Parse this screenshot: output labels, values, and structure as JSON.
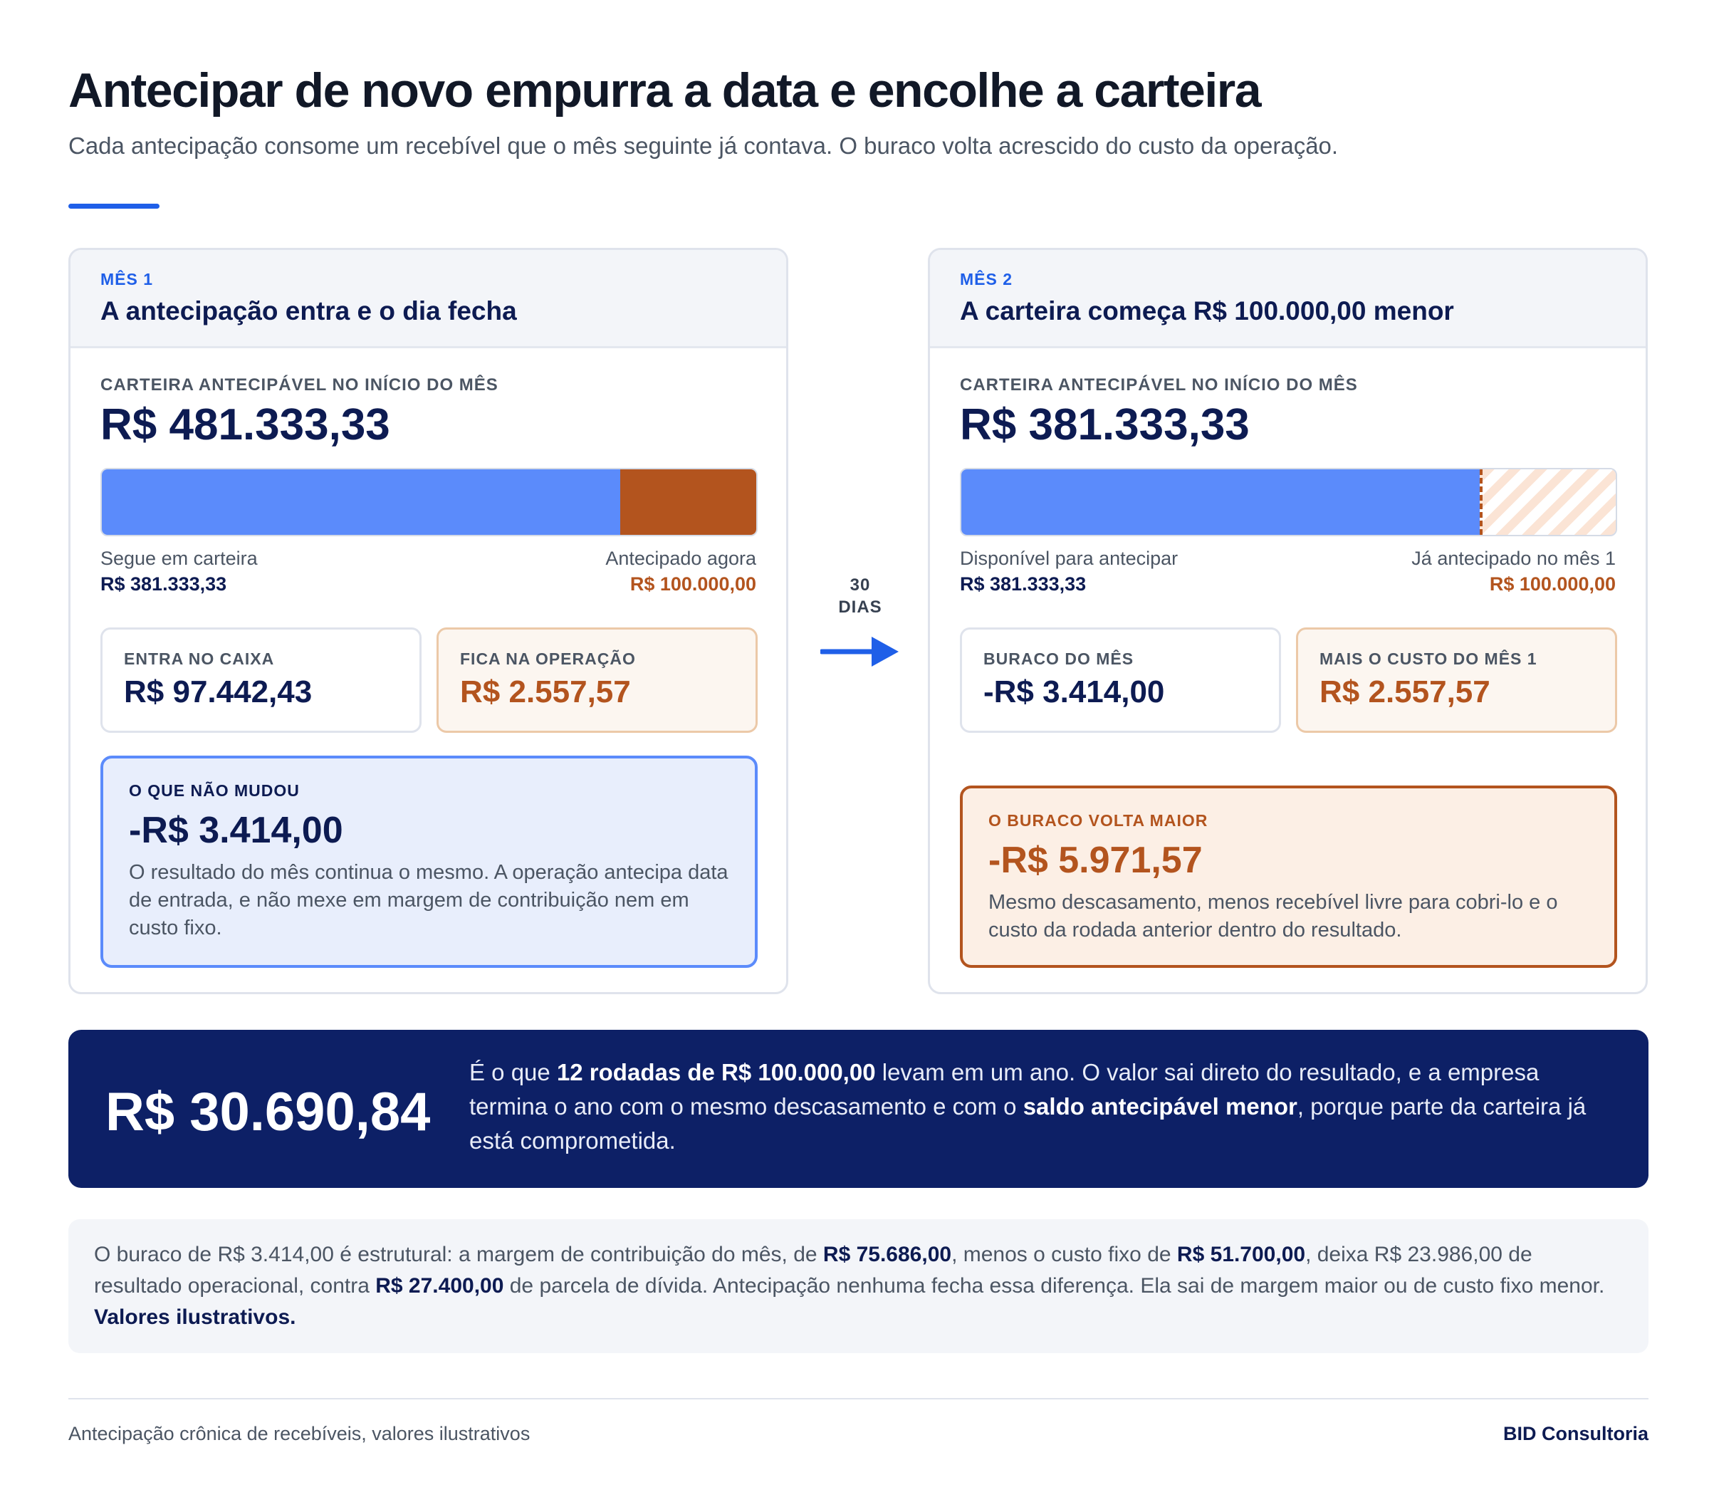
{
  "header": {
    "title": "Antecipar de novo empurra a data e encolhe a carteira",
    "subtitle": "Cada antecipação consome um recebível que o mês seguinte já contava. O buraco volta acrescido do custo da operação."
  },
  "colors": {
    "accent_blue": "#1f5fe8",
    "bar_blue": "#5b8bfb",
    "rust": "#b3541e",
    "navy": "#0d2066"
  },
  "month1": {
    "month_label": "MÊS 1",
    "title": "A antecipação entra e o dia fecha",
    "portfolio_label": "CARTEIRA ANTECIPÁVEL NO INÍCIO DO MÊS",
    "portfolio_value": "R$ 481.333,33",
    "bar": {
      "remaining_fraction": 0.7922,
      "advanced_fraction": 0.2078
    },
    "left_label": "Segue em carteira",
    "left_value": "R$ 381.333,33",
    "right_label": "Antecipado agora",
    "right_value": "R$ 100.000,00",
    "box1_label": "ENTRA NO CAIXA",
    "box1_value": "R$ 97.442,43",
    "box2_label": "FICA NA OPERAÇÃO",
    "box2_value": "R$ 2.557,57",
    "callout_label": "O QUE NÃO MUDOU",
    "callout_value": "-R$ 3.414,00",
    "callout_text": "O resultado do mês continua o mesmo. A operação antecipa data de entrada, e não mexe em margem de contribuição nem em custo fixo."
  },
  "transition": {
    "line1": "30",
    "line2": "DIAS",
    "icon": "arrow-right-icon"
  },
  "month2": {
    "month_label": "MÊS 2",
    "title": "A carteira começa R$ 100.000,00 menor",
    "portfolio_label": "CARTEIRA ANTECIPÁVEL NO INÍCIO DO MÊS",
    "portfolio_value": "R$ 381.333,33",
    "bar": {
      "remaining_fraction": 0.7922,
      "advanced_fraction": 0.2078
    },
    "left_label": "Disponível para antecipar",
    "left_value": "R$ 381.333,33",
    "right_label": "Já antecipado no mês 1",
    "right_value": "R$ 100.000,00",
    "box1_label": "BURACO DO MÊS",
    "box1_value": "-R$ 3.414,00",
    "box2_label": "MAIS O CUSTO DO MÊS 1",
    "box2_value": "R$ 2.557,57",
    "callout_label": "O BURACO VOLTA MAIOR",
    "callout_value": "-R$ 5.971,57",
    "callout_text": "Mesmo descasamento, menos recebível livre para cobri-lo e o custo da rodada anterior dentro do resultado."
  },
  "banner": {
    "value": "R$ 30.690,84",
    "text_1": "É o que ",
    "text_bold_1": "12 rodadas de R$ 100.000,00",
    "text_2": " levam em um ano. O valor sai direto do resultado, e a empresa termina o ano com o mesmo descasamento e com o ",
    "text_bold_2": "saldo antecipável menor",
    "text_3": ", porque parte da carteira já está comprometida."
  },
  "note": {
    "t1": "O buraco de R$ 3.414,00 é estrutural: a margem de contribuição do mês, de ",
    "b1": "R$ 75.686,00",
    "t2": ", menos o custo fixo de ",
    "b2": "R$ 51.700,00",
    "t3": ", deixa R$ 23.986,00 de resultado operacional, contra ",
    "b3": "R$ 27.400,00",
    "t4": " de parcela de dívida. Antecipação nenhuma fecha essa diferença. Ela sai de margem maior ou de custo fixo menor. ",
    "b4": "Valores ilustrativos."
  },
  "footer": {
    "left": "Antecipação crônica de recebíveis, valores ilustrativos",
    "right": "BID Consultoria"
  }
}
